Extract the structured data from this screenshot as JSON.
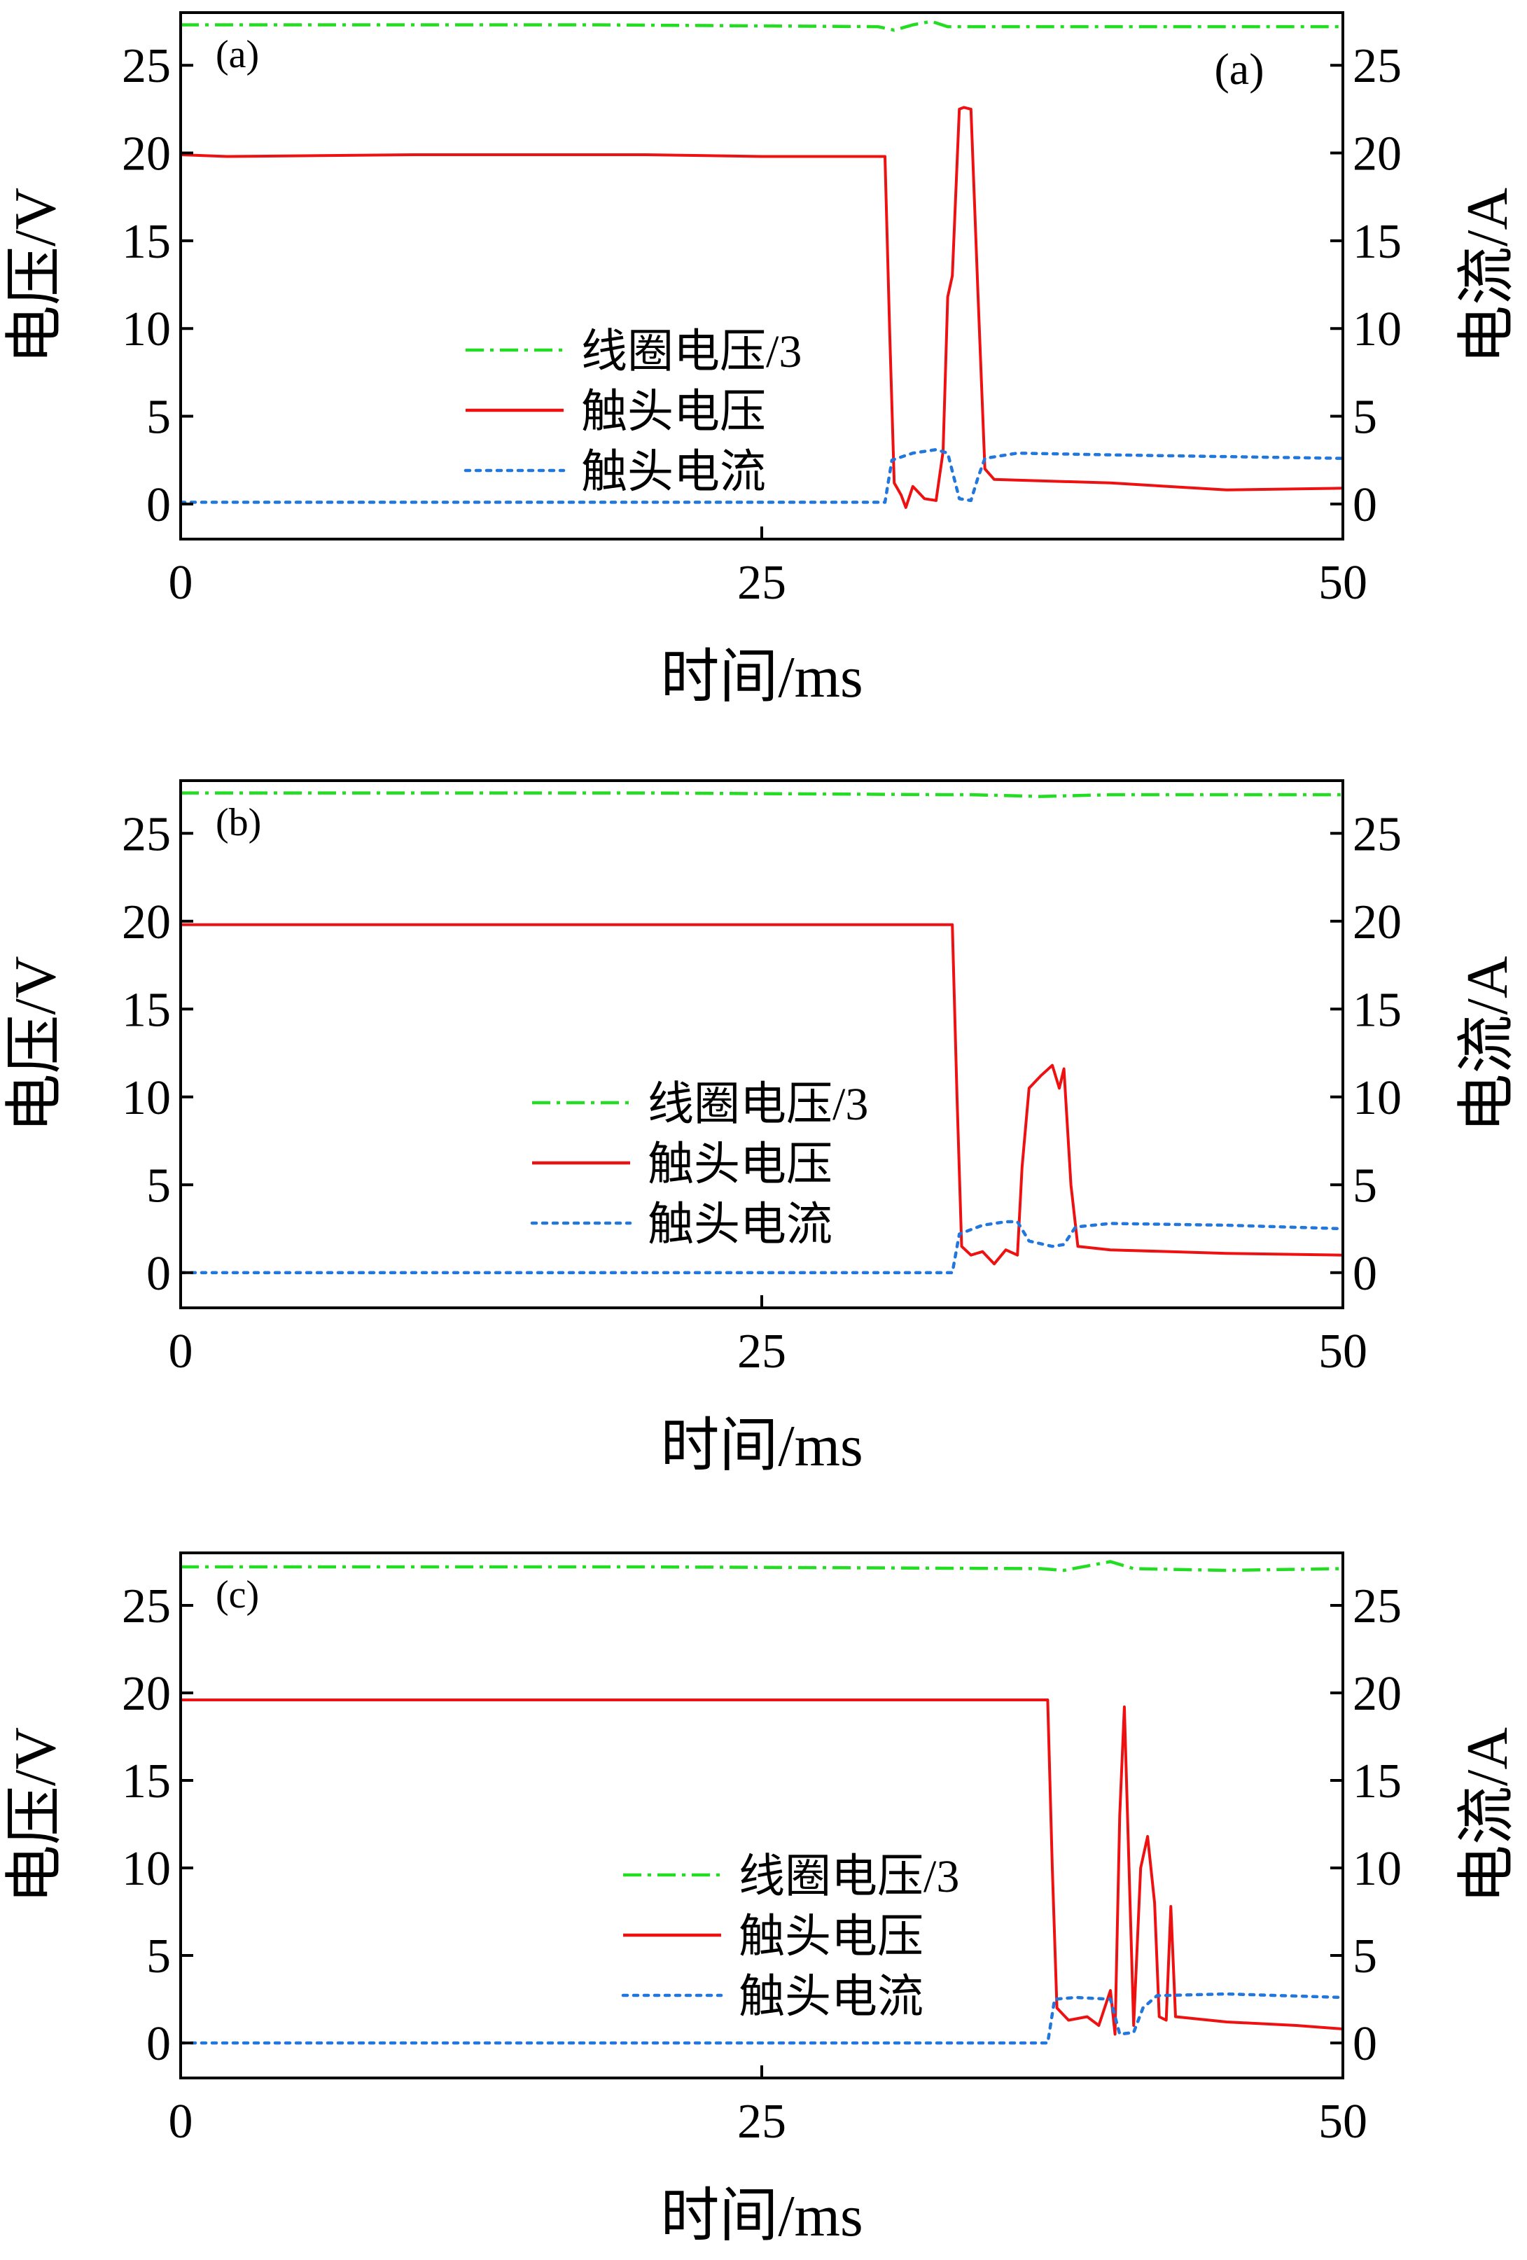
{
  "chart_data": [
    {
      "type": "line",
      "panel_label": "(a)",
      "extra_label": "(a)",
      "xlabel": "时间/ms",
      "ylabel": "电压/V",
      "y2label": "电流/A",
      "xlim": [
        0,
        50
      ],
      "ylim": [
        -2,
        28
      ],
      "y2lim": [
        -2,
        28
      ],
      "xticks": [
        "0",
        "25",
        "50"
      ],
      "yticks": [
        "0",
        "5",
        "10",
        "15",
        "20",
        "25"
      ],
      "colors": {
        "coil": "#22dd22",
        "contact_voltage": "#ee1111",
        "contact_current": "#2277dd"
      },
      "legend": [
        "线圈电压/3",
        "触头电压",
        "触头电流"
      ],
      "legend_position": "center-left",
      "series": [
        {
          "name": "线圈电压/3",
          "style": "dash-dot",
          "points": [
            [
              0,
              27.3
            ],
            [
              18,
              27.3
            ],
            [
              30,
              27.2
            ],
            [
              30.7,
              27.0
            ],
            [
              31.5,
              27.3
            ],
            [
              32.3,
              27.5
            ],
            [
              33,
              27.2
            ],
            [
              40,
              27.2
            ],
            [
              50,
              27.2
            ]
          ]
        },
        {
          "name": "触头电压",
          "style": "solid",
          "points": [
            [
              0,
              19.9
            ],
            [
              2,
              19.8
            ],
            [
              10,
              19.9
            ],
            [
              20,
              19.9
            ],
            [
              25,
              19.8
            ],
            [
              30.3,
              19.8
            ],
            [
              30.5,
              10
            ],
            [
              30.7,
              1.2
            ],
            [
              31,
              0.5
            ],
            [
              31.2,
              -0.2
            ],
            [
              31.5,
              1.0
            ],
            [
              32,
              0.3
            ],
            [
              32.5,
              0.2
            ],
            [
              32.8,
              3
            ],
            [
              33.0,
              11.8
            ],
            [
              33.2,
              13
            ],
            [
              33.5,
              22.5
            ],
            [
              33.7,
              22.6
            ],
            [
              34.0,
              22.5
            ],
            [
              34.3,
              12
            ],
            [
              34.6,
              2
            ],
            [
              35,
              1.4
            ],
            [
              40,
              1.2
            ],
            [
              45,
              0.8
            ],
            [
              50,
              0.9
            ]
          ]
        },
        {
          "name": "触头电流",
          "style": "dotted",
          "points": [
            [
              0,
              0.1
            ],
            [
              10,
              0.1
            ],
            [
              20,
              0.1
            ],
            [
              30.3,
              0.1
            ],
            [
              30.6,
              2.5
            ],
            [
              31.5,
              2.9
            ],
            [
              32.5,
              3.1
            ],
            [
              33.0,
              2.9
            ],
            [
              33.5,
              0.3
            ],
            [
              34.0,
              0.2
            ],
            [
              34.3,
              1.5
            ],
            [
              34.6,
              2.6
            ],
            [
              36,
              2.9
            ],
            [
              40,
              2.8
            ],
            [
              45,
              2.7
            ],
            [
              50,
              2.6
            ]
          ]
        }
      ]
    },
    {
      "type": "line",
      "panel_label": "(b)",
      "extra_label": "",
      "xlabel": "时间/ms",
      "ylabel": "电压/V",
      "y2label": "电流/A",
      "xlim": [
        0,
        50
      ],
      "ylim": [
        -2,
        28
      ],
      "y2lim": [
        -2,
        28
      ],
      "xticks": [
        "0",
        "25",
        "50"
      ],
      "yticks": [
        "0",
        "5",
        "10",
        "15",
        "20",
        "25"
      ],
      "colors": {
        "coil": "#22dd22",
        "contact_voltage": "#ee1111",
        "contact_current": "#2277dd"
      },
      "legend": [
        "线圈电压/3",
        "触头电压",
        "触头电流"
      ],
      "legend_position": "center",
      "series": [
        {
          "name": "线圈电压/3",
          "style": "dash-dot",
          "points": [
            [
              0,
              27.3
            ],
            [
              20,
              27.3
            ],
            [
              33,
              27.2
            ],
            [
              34,
              27.2
            ],
            [
              37,
              27.1
            ],
            [
              40,
              27.2
            ],
            [
              50,
              27.2
            ]
          ]
        },
        {
          "name": "触头电压",
          "style": "solid",
          "points": [
            [
              0,
              19.8
            ],
            [
              10,
              19.8
            ],
            [
              20,
              19.8
            ],
            [
              30,
              19.8
            ],
            [
              33.2,
              19.8
            ],
            [
              33.4,
              10
            ],
            [
              33.6,
              1.5
            ],
            [
              34,
              1.0
            ],
            [
              34.5,
              1.2
            ],
            [
              35,
              0.5
            ],
            [
              35.5,
              1.3
            ],
            [
              36.0,
              1.0
            ],
            [
              36.2,
              6
            ],
            [
              36.5,
              10.5
            ],
            [
              37,
              11.2
            ],
            [
              37.5,
              11.8
            ],
            [
              37.8,
              10.5
            ],
            [
              38.0,
              11.6
            ],
            [
              38.3,
              5
            ],
            [
              38.6,
              1.5
            ],
            [
              40,
              1.3
            ],
            [
              45,
              1.1
            ],
            [
              50,
              1.0
            ]
          ]
        },
        {
          "name": "触头电流",
          "style": "dotted",
          "points": [
            [
              0,
              0.0
            ],
            [
              10,
              0.0
            ],
            [
              20,
              0.0
            ],
            [
              33.2,
              0.0
            ],
            [
              33.5,
              2.2
            ],
            [
              34.5,
              2.7
            ],
            [
              35.5,
              2.9
            ],
            [
              36.0,
              2.9
            ],
            [
              36.5,
              1.8
            ],
            [
              37.5,
              1.5
            ],
            [
              38.0,
              1.6
            ],
            [
              38.5,
              2.6
            ],
            [
              40,
              2.8
            ],
            [
              45,
              2.7
            ],
            [
              50,
              2.5
            ]
          ]
        }
      ]
    },
    {
      "type": "line",
      "panel_label": "(c)",
      "extra_label": "",
      "xlabel": "时间/ms",
      "ylabel": "电压/V",
      "y2label": "电流/A",
      "xlim": [
        0,
        50
      ],
      "ylim": [
        -2,
        28
      ],
      "y2lim": [
        -2,
        28
      ],
      "xticks": [
        "0",
        "25",
        "50"
      ],
      "yticks": [
        "0",
        "5",
        "10",
        "15",
        "20",
        "25"
      ],
      "colors": {
        "coil": "#22dd22",
        "contact_voltage": "#ee1111",
        "contact_current": "#2277dd"
      },
      "legend": [
        "线圈电压/3",
        "触头电压",
        "触头电流"
      ],
      "legend_position": "center-right",
      "series": [
        {
          "name": "线圈电压/3",
          "style": "dash-dot",
          "points": [
            [
              0,
              27.2
            ],
            [
              20,
              27.2
            ],
            [
              37,
              27.1
            ],
            [
              38,
              27.0
            ],
            [
              40,
              27.5
            ],
            [
              41,
              27.1
            ],
            [
              45,
              27.0
            ],
            [
              50,
              27.1
            ]
          ]
        },
        {
          "name": "触头电压",
          "style": "solid",
          "points": [
            [
              0,
              19.6
            ],
            [
              10,
              19.6
            ],
            [
              20,
              19.6
            ],
            [
              30,
              19.6
            ],
            [
              37.3,
              19.6
            ],
            [
              37.5,
              10
            ],
            [
              37.7,
              2
            ],
            [
              38.2,
              1.3
            ],
            [
              39,
              1.5
            ],
            [
              39.5,
              1.0
            ],
            [
              40,
              3.0
            ],
            [
              40.2,
              0.5
            ],
            [
              40.4,
              13
            ],
            [
              40.6,
              19.2
            ],
            [
              40.8,
              10
            ],
            [
              41.0,
              1.0
            ],
            [
              41.3,
              10
            ],
            [
              41.6,
              11.8
            ],
            [
              41.9,
              8
            ],
            [
              42.1,
              1.5
            ],
            [
              42.4,
              1.3
            ],
            [
              42.6,
              7.8
            ],
            [
              42.8,
              1.5
            ],
            [
              45,
              1.2
            ],
            [
              48,
              1.0
            ],
            [
              50,
              0.8
            ]
          ]
        },
        {
          "name": "触头电流",
          "style": "dotted",
          "points": [
            [
              0,
              0.0
            ],
            [
              10,
              0.0
            ],
            [
              20,
              0.0
            ],
            [
              37.3,
              0.0
            ],
            [
              37.6,
              2.5
            ],
            [
              38.5,
              2.6
            ],
            [
              40.0,
              2.5
            ],
            [
              40.4,
              0.5
            ],
            [
              41.0,
              0.6
            ],
            [
              41.4,
              2.0
            ],
            [
              42.0,
              2.7
            ],
            [
              45,
              2.8
            ],
            [
              50,
              2.6
            ]
          ]
        }
      ]
    }
  ]
}
